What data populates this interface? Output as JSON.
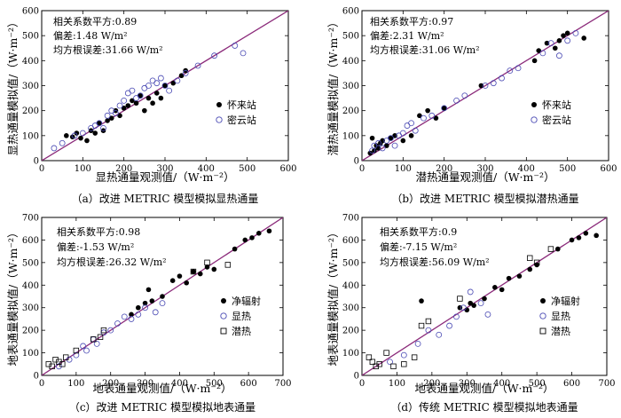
{
  "chart_data": [
    {
      "type": "scatter",
      "caption": "（a）改进 METRIC 模型模拟显热通量",
      "xlabel": "显热通量观测值/（W·m⁻²）",
      "ylabel": "显热通量模拟值/（W·m⁻²）",
      "xlim": [
        0,
        600
      ],
      "ylim": [
        0,
        600
      ],
      "xticks": [
        0,
        100,
        200,
        300,
        400,
        500,
        600
      ],
      "yticks": [
        0,
        100,
        200,
        300,
        400,
        500,
        600
      ],
      "stats": [
        "相关系数平方:0.89",
        "偏差:1.48 W/m²",
        "均方根误差:31.66 W/m²"
      ],
      "legend_position": "middle-right",
      "series": [
        {
          "name": "怀来站",
          "marker": "filled-circle",
          "x": [
            60,
            75,
            85,
            95,
            110,
            120,
            130,
            140,
            150,
            160,
            170,
            180,
            190,
            200,
            210,
            220,
            230,
            240,
            250,
            260,
            270,
            280,
            290,
            300,
            320,
            340,
            350
          ],
          "y": [
            100,
            95,
            110,
            90,
            80,
            120,
            110,
            150,
            120,
            160,
            170,
            200,
            180,
            210,
            220,
            240,
            230,
            260,
            200,
            250,
            230,
            270,
            250,
            300,
            310,
            340,
            360
          ]
        },
        {
          "name": "密云站",
          "marker": "open-circle",
          "x": [
            30,
            50,
            80,
            100,
            120,
            130,
            140,
            150,
            160,
            170,
            180,
            190,
            200,
            210,
            220,
            230,
            240,
            250,
            260,
            270,
            280,
            290,
            300,
            310,
            330,
            350,
            380,
            420,
            470,
            490
          ],
          "y": [
            50,
            70,
            100,
            110,
            130,
            140,
            150,
            130,
            180,
            200,
            190,
            220,
            240,
            270,
            280,
            250,
            260,
            290,
            300,
            320,
            310,
            330,
            300,
            280,
            320,
            350,
            380,
            420,
            460,
            430
          ]
        }
      ]
    },
    {
      "type": "scatter",
      "caption": "（b）改进 METRIC 模型模拟潜热通量",
      "xlabel": "潜热通量观测值/（W·m⁻²）",
      "ylabel": "潜热通量模拟值/（W·m⁻²）",
      "xlim": [
        0,
        600
      ],
      "ylim": [
        0,
        600
      ],
      "xticks": [
        0,
        100,
        200,
        300,
        400,
        500,
        600
      ],
      "yticks": [
        0,
        100,
        200,
        300,
        400,
        500,
        600
      ],
      "stats": [
        "相关系数平方:0.97",
        "偏差:2.31 W/m²",
        "均方根误差:31.06 W/m²"
      ],
      "legend_position": "middle-right",
      "series": [
        {
          "name": "怀来站",
          "marker": "filled-circle",
          "x": [
            20,
            25,
            30,
            35,
            40,
            45,
            50,
            60,
            70,
            80,
            100,
            120,
            140,
            160,
            180,
            200,
            290,
            420,
            430,
            450,
            470,
            480,
            490,
            500,
            540
          ],
          "y": [
            30,
            90,
            40,
            60,
            50,
            70,
            80,
            60,
            90,
            100,
            80,
            100,
            180,
            200,
            170,
            210,
            300,
            400,
            440,
            470,
            450,
            480,
            500,
            510,
            490
          ]
        },
        {
          "name": "密云站",
          "marker": "open-circle",
          "x": [
            25,
            30,
            40,
            50,
            60,
            70,
            80,
            90,
            100,
            110,
            120,
            130,
            150,
            170,
            200,
            230,
            250,
            300,
            320,
            340,
            360,
            380,
            440,
            460,
            480,
            500,
            520
          ],
          "y": [
            40,
            60,
            70,
            50,
            80,
            90,
            60,
            100,
            110,
            140,
            150,
            120,
            170,
            180,
            210,
            240,
            260,
            300,
            310,
            330,
            360,
            370,
            430,
            470,
            420,
            480,
            510
          ]
        }
      ]
    },
    {
      "type": "scatter",
      "caption": "（c）改进 METRIC 模型模拟地表通量",
      "xlabel": "地表通量观测值/（W·m⁻²）",
      "ylabel": "地表通量模拟值/（W·m⁻²）",
      "xlim": [
        0,
        700
      ],
      "ylim": [
        0,
        700
      ],
      "xticks": [
        0,
        100,
        200,
        300,
        400,
        500,
        600,
        700
      ],
      "yticks": [
        0,
        100,
        200,
        300,
        400,
        500,
        600,
        700
      ],
      "stats": [
        "相关系数平方:0.98",
        "偏差:-1.53 W/m²",
        "均方根误差:26.32 W/m²"
      ],
      "legend_position": "middle-right",
      "series": [
        {
          "name": "净辐射",
          "marker": "filled-circle",
          "x": [
            260,
            280,
            300,
            310,
            320,
            350,
            380,
            400,
            420,
            440,
            460,
            480,
            500,
            560,
            590,
            610,
            630,
            660
          ],
          "y": [
            270,
            300,
            320,
            380,
            330,
            350,
            420,
            440,
            410,
            460,
            450,
            480,
            470,
            560,
            600,
            610,
            630,
            640
          ]
        },
        {
          "name": "显热",
          "marker": "open-circle",
          "x": [
            50,
            80,
            100,
            120,
            130,
            150,
            160,
            180,
            200,
            220,
            240,
            260,
            280,
            300,
            330,
            350
          ],
          "y": [
            40,
            70,
            90,
            130,
            110,
            160,
            140,
            190,
            200,
            230,
            260,
            250,
            270,
            300,
            280,
            320
          ]
        },
        {
          "name": "潜热",
          "marker": "open-square",
          "x": [
            20,
            30,
            40,
            50,
            60,
            70,
            100,
            150,
            170,
            180,
            440,
            480,
            540
          ],
          "y": [
            50,
            40,
            70,
            60,
            50,
            80,
            110,
            160,
            170,
            200,
            460,
            500,
            490
          ]
        }
      ]
    },
    {
      "type": "scatter",
      "caption": "（d）传统 METRIC 模型模拟地表通量",
      "xlabel": "地表通量观测值/（W·m⁻²）",
      "ylabel": "地表通量模拟值/（W·m⁻²）",
      "xlim": [
        0,
        700
      ],
      "ylim": [
        0,
        700
      ],
      "xticks": [
        0,
        100,
        200,
        300,
        400,
        500,
        600,
        700
      ],
      "yticks": [
        0,
        100,
        200,
        300,
        400,
        500,
        600,
        700
      ],
      "stats": [
        "相关系数平方:0.9",
        "偏差:-7.15 W/m²",
        "均方根误差:56.09 W/m²"
      ],
      "legend_position": "middle-right",
      "series": [
        {
          "name": "净辐射",
          "marker": "filled-circle",
          "x": [
            170,
            280,
            300,
            310,
            320,
            350,
            380,
            400,
            420,
            450,
            480,
            500,
            560,
            600,
            620,
            640,
            670
          ],
          "y": [
            330,
            300,
            290,
            320,
            310,
            340,
            390,
            380,
            430,
            440,
            470,
            490,
            560,
            600,
            610,
            630,
            620
          ]
        },
        {
          "name": "显热",
          "marker": "open-circle",
          "x": [
            80,
            120,
            160,
            190,
            220,
            250,
            270,
            290,
            310,
            340,
            360
          ],
          "y": [
            60,
            90,
            140,
            200,
            180,
            220,
            260,
            300,
            370,
            320,
            270
          ]
        },
        {
          "name": "潜热",
          "marker": "open-square",
          "x": [
            20,
            30,
            40,
            50,
            70,
            90,
            120,
            150,
            170,
            190,
            280,
            480,
            500,
            540
          ],
          "y": [
            80,
            60,
            40,
            50,
            100,
            40,
            50,
            80,
            220,
            240,
            340,
            520,
            500,
            560
          ]
        }
      ]
    }
  ]
}
